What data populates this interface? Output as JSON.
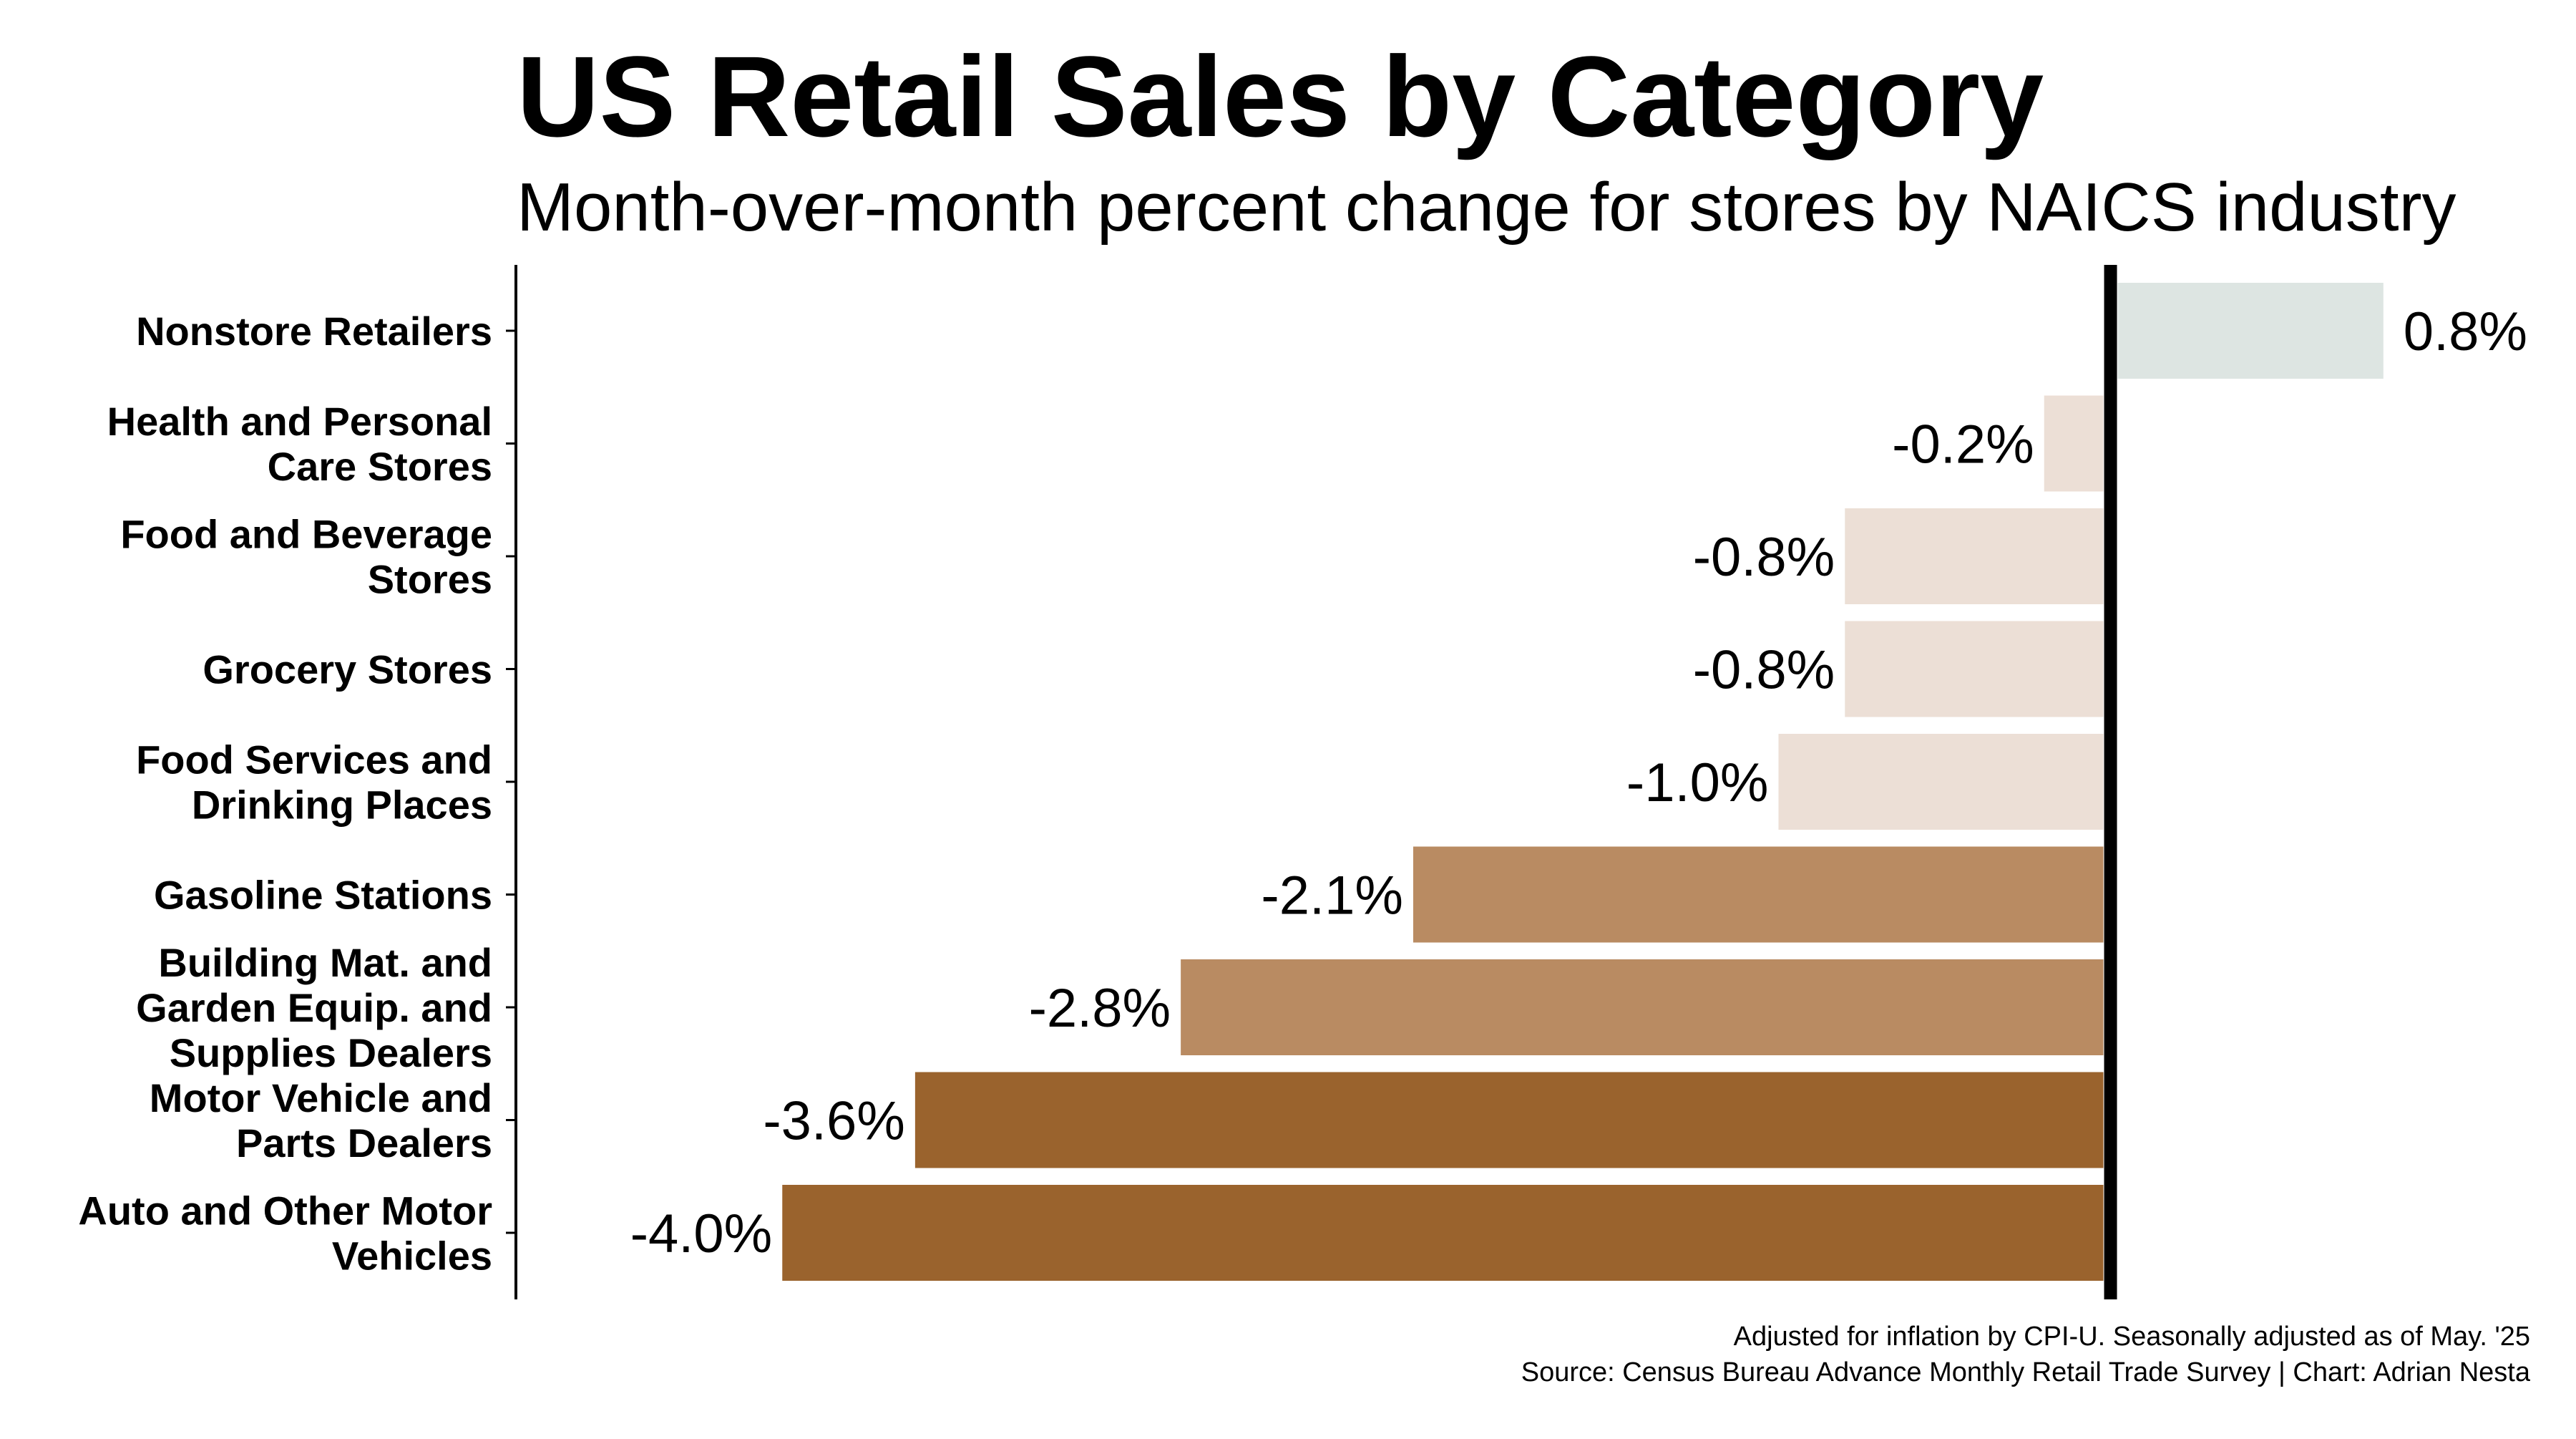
{
  "chart_data": {
    "type": "bar",
    "orientation": "horizontal",
    "title": "US Retail Sales by Category",
    "subtitle": "Month-over-month percent change for stores by NAICS industry",
    "xlabel": "",
    "ylabel": "",
    "xlim": [
      -4.8,
      1.1
    ],
    "grid": false,
    "categories": [
      "Nonstore Retailers",
      "Health and Personal Care Stores",
      "Food and Beverage Stores",
      "Grocery Stores",
      "Food Services and Drinking Places",
      "Gasoline Stations",
      "Building Mat. and Garden Equip. and Supplies Dealers",
      "Motor Vehicle and Parts Dealers",
      "Auto and Other Motor Vehicles"
    ],
    "category_lines": [
      [
        "Nonstore Retailers"
      ],
      [
        "Health and Personal",
        "Care Stores"
      ],
      [
        "Food and Beverage",
        "Stores"
      ],
      [
        "Grocery Stores"
      ],
      [
        "Food Services and",
        "Drinking Places"
      ],
      [
        "Gasoline Stations"
      ],
      [
        "Building Mat. and",
        "Garden Equip. and",
        "Supplies Dealers"
      ],
      [
        "Motor Vehicle and",
        "Parts Dealers"
      ],
      [
        "Auto and Other Motor",
        "Vehicles"
      ]
    ],
    "values": [
      0.8,
      -0.2,
      -0.8,
      -0.8,
      -1.0,
      -2.1,
      -2.8,
      -3.6,
      -4.0
    ],
    "value_labels": [
      "0.8%",
      "-0.2%",
      "-0.8%",
      "-0.8%",
      "-1.0%",
      "-2.1%",
      "-2.8%",
      "-3.6%",
      "-4.0%"
    ],
    "colors": [
      "#dde5e2",
      "#ecdfd6",
      "#ecdfd6",
      "#ecdfd6",
      "#ecdfd6",
      "#b98b62",
      "#b98b62",
      "#9a632d",
      "#9a632d"
    ],
    "zero_line_color": "#000000",
    "notes": [
      "Adjusted for inflation by CPI-U. Seasonally adjusted as of May. '25",
      "Source: Census Bureau Advance Monthly Retail Trade Survey | Chart: Adrian Nesta"
    ]
  }
}
